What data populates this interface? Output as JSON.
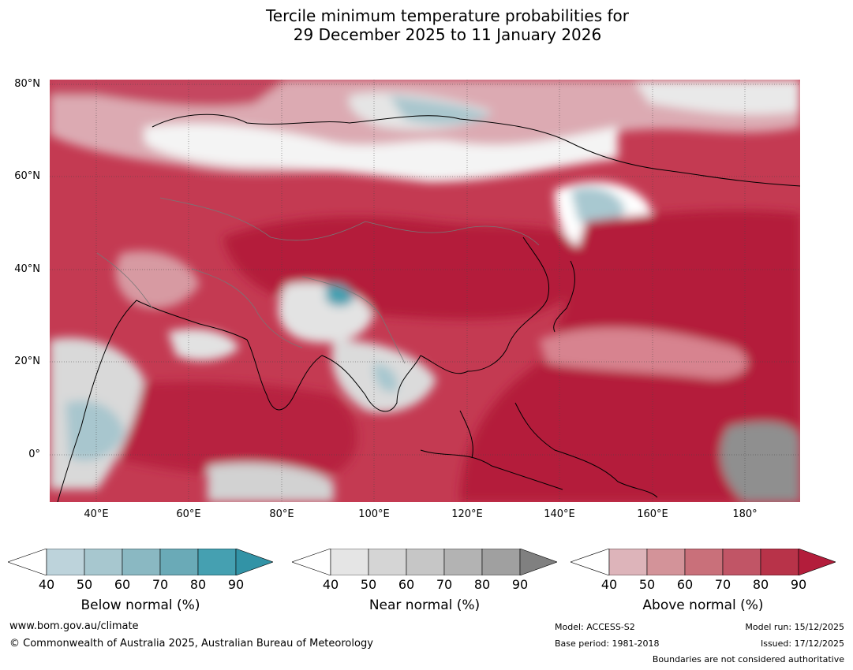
{
  "title": {
    "line1": "Tercile minimum temperature probabilities for",
    "line2": "29 December 2025 to 11 January 2026"
  },
  "axes": {
    "lat_labels": [
      "80°N",
      "60°N",
      "40°N",
      "20°N",
      "0°"
    ],
    "lon_labels": [
      "40°E",
      "60°E",
      "80°E",
      "100°E",
      "120°E",
      "140°E",
      "160°E",
      "180°"
    ]
  },
  "colorbars": {
    "ticks": [
      "40",
      "50",
      "60",
      "70",
      "80",
      "90"
    ],
    "below": {
      "label": "Below normal (%)",
      "colors": [
        "#ffffff",
        "#bdd3db",
        "#a7c7cf",
        "#8ab8c2",
        "#6aaab7",
        "#45a0b1",
        "#3293a6"
      ]
    },
    "near": {
      "label": "Near normal (%)",
      "colors": [
        "#ffffff",
        "#e5e5e5",
        "#d5d5d5",
        "#c6c6c6",
        "#b3b3b3",
        "#a0a0a0",
        "#808080"
      ]
    },
    "above": {
      "label": "Above normal (%)",
      "colors": [
        "#ffffff",
        "#ddb4ba",
        "#d39399",
        "#c9707a",
        "#c15566",
        "#b83349",
        "#b31d3b"
      ]
    }
  },
  "footer": {
    "website": "www.bom.gov.au/climate",
    "copyright": "© Commonwealth of Australia 2025, Australian Bureau of Meteorology",
    "model": "Model: ACCESS-S2",
    "base_period": "Base period: 1981-2018",
    "model_run": "Model run: 15/12/2025",
    "issued": "Issued: 17/12/2025",
    "boundaries": "Boundaries are not considered authoritative"
  }
}
